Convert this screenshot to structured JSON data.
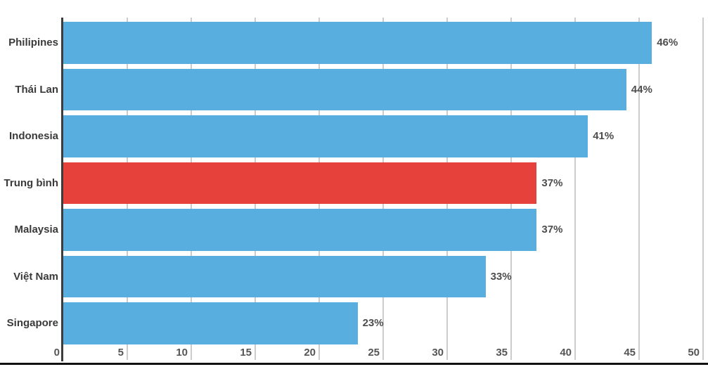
{
  "chart_data": {
    "type": "bar",
    "orientation": "horizontal",
    "title": "",
    "xlabel": "",
    "ylabel": "",
    "categories": [
      "Philipines",
      "Thái Lan",
      "Indonesia",
      "Trung bình",
      "Malaysia",
      "Việt Nam",
      "Singapore"
    ],
    "values": [
      46,
      44,
      41,
      37,
      37,
      33,
      23
    ],
    "value_labels": [
      "46%",
      "44%",
      "41%",
      "37%",
      "37%",
      "33%",
      "23%"
    ],
    "highlight_index": 3,
    "xlim": [
      0,
      50
    ],
    "xticks": [
      0,
      5,
      10,
      15,
      20,
      25,
      30,
      35,
      40,
      45,
      50
    ],
    "grid": true,
    "legend": false,
    "colors": {
      "bar": "#58afdf",
      "highlight_bar": "#e6413a",
      "axis": "#3d3d3d",
      "gridline": "#cccccc",
      "category_label": "#3a3a3a",
      "value_label": "#4d4d4d",
      "tick_label": "#555555",
      "bottom_rule": "#111111",
      "background": "#ffffff"
    }
  }
}
